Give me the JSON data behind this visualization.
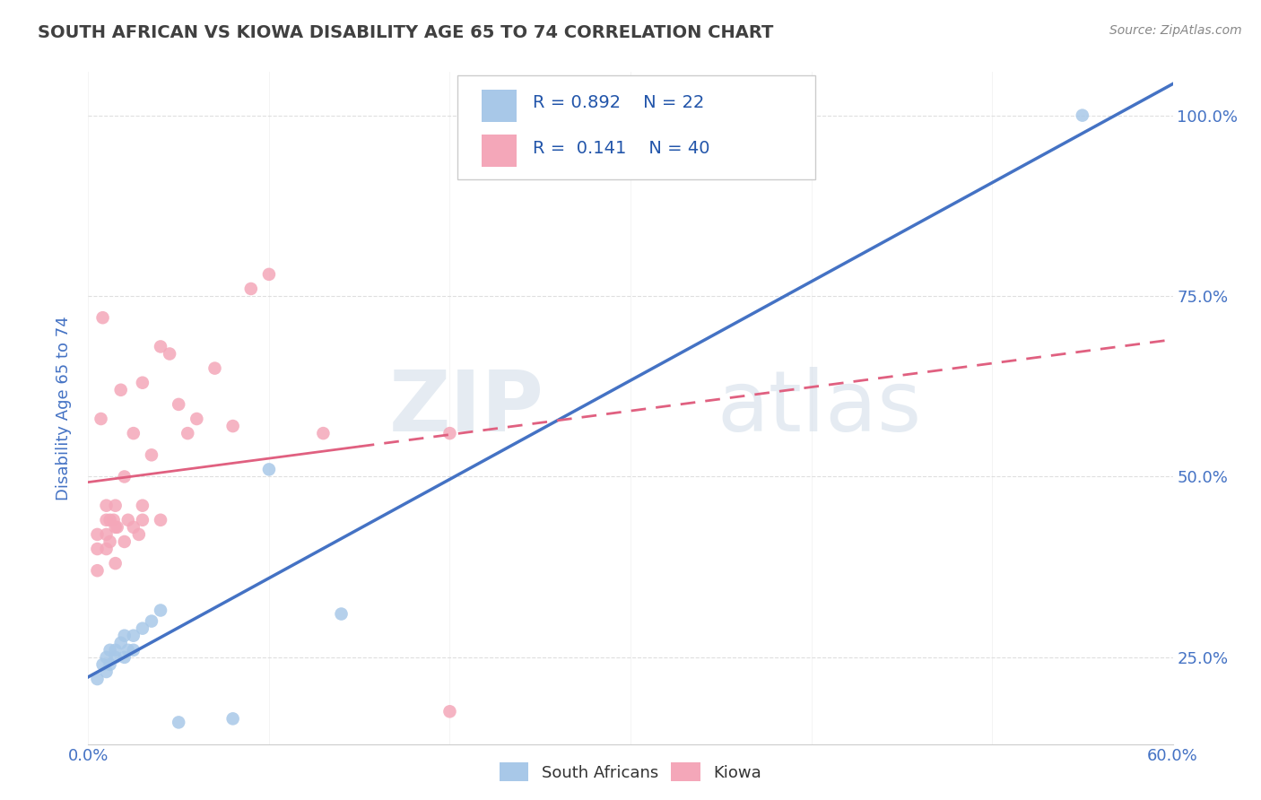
{
  "title": "SOUTH AFRICAN VS KIOWA DISABILITY AGE 65 TO 74 CORRELATION CHART",
  "source": "Source: ZipAtlas.com",
  "ylabel": "Disability Age 65 to 74",
  "xlim": [
    0.0,
    0.6
  ],
  "ylim": [
    0.13,
    1.06
  ],
  "legend1_label": "South Africans",
  "legend2_label": "Kiowa",
  "r1": 0.892,
  "n1": 22,
  "r2": 0.141,
  "n2": 40,
  "color_sa": "#a8c8e8",
  "color_sa_line": "#4472c4",
  "color_kiowa": "#f4a7b9",
  "color_kiowa_line": "#e06080",
  "watermark_zip": "ZIP",
  "watermark_atlas": "atlas",
  "sa_scatter_x": [
    0.005,
    0.008,
    0.01,
    0.01,
    0.012,
    0.012,
    0.015,
    0.015,
    0.018,
    0.02,
    0.02,
    0.022,
    0.025,
    0.025,
    0.03,
    0.035,
    0.04,
    0.05,
    0.08,
    0.1,
    0.14,
    0.55
  ],
  "sa_scatter_y": [
    0.22,
    0.24,
    0.23,
    0.25,
    0.24,
    0.26,
    0.25,
    0.26,
    0.27,
    0.25,
    0.28,
    0.26,
    0.26,
    0.28,
    0.29,
    0.3,
    0.315,
    0.16,
    0.165,
    0.51,
    0.31,
    1.0
  ],
  "kiowa_scatter_x": [
    0.005,
    0.005,
    0.005,
    0.007,
    0.008,
    0.01,
    0.01,
    0.01,
    0.01,
    0.012,
    0.012,
    0.014,
    0.015,
    0.015,
    0.015,
    0.016,
    0.018,
    0.02,
    0.02,
    0.022,
    0.025,
    0.025,
    0.028,
    0.03,
    0.03,
    0.03,
    0.035,
    0.04,
    0.04,
    0.045,
    0.05,
    0.055,
    0.06,
    0.07,
    0.08,
    0.09,
    0.1,
    0.13,
    0.2,
    0.2
  ],
  "kiowa_scatter_y": [
    0.37,
    0.4,
    0.42,
    0.58,
    0.72,
    0.4,
    0.42,
    0.44,
    0.46,
    0.41,
    0.44,
    0.44,
    0.38,
    0.43,
    0.46,
    0.43,
    0.62,
    0.41,
    0.5,
    0.44,
    0.43,
    0.56,
    0.42,
    0.44,
    0.46,
    0.63,
    0.53,
    0.44,
    0.68,
    0.67,
    0.6,
    0.56,
    0.58,
    0.65,
    0.57,
    0.76,
    0.78,
    0.56,
    0.56,
    0.175
  ],
  "background_color": "#ffffff",
  "grid_color": "#d8d8d8",
  "title_color": "#404040",
  "tick_label_color": "#4472c4"
}
